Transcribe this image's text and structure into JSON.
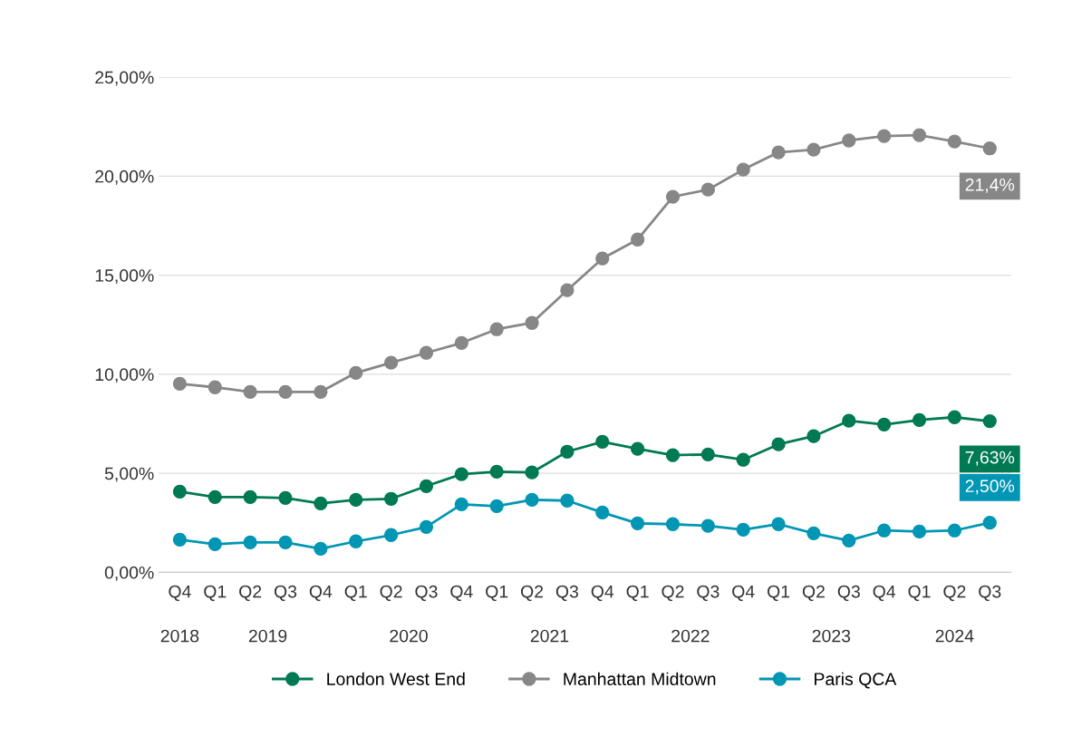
{
  "chart_data": {
    "type": "line",
    "categories": [
      "Q4",
      "Q1",
      "Q2",
      "Q3",
      "Q4",
      "Q1",
      "Q2",
      "Q3",
      "Q4",
      "Q1",
      "Q2",
      "Q3",
      "Q4",
      "Q1",
      "Q2",
      "Q3",
      "Q4",
      "Q1",
      "Q2",
      "Q3",
      "Q4",
      "Q1",
      "Q2",
      "Q3"
    ],
    "annotations": [
      "2018",
      "2019",
      "2020",
      "2021",
      "2022",
      "2023",
      "2024"
    ],
    "series": [
      {
        "name": "London West End",
        "color": "#007a53",
        "values": [
          4.07,
          3.8,
          3.8,
          3.75,
          3.48,
          3.66,
          3.71,
          4.35,
          4.95,
          5.08,
          5.04,
          6.09,
          6.59,
          6.23,
          5.91,
          5.95,
          5.68,
          6.46,
          6.87,
          7.65,
          7.46,
          7.69,
          7.83,
          7.63
        ],
        "value_labels": [
          null,
          null,
          null,
          null,
          null,
          null,
          null,
          null,
          null,
          null,
          null,
          null,
          null,
          null,
          null,
          null,
          null,
          null,
          null,
          null,
          null,
          null,
          null,
          "7,63%"
        ]
      },
      {
        "name": "Manhattan Midtown",
        "color": "#878787",
        "values": [
          9.52,
          9.34,
          9.11,
          9.11,
          9.11,
          10.07,
          10.58,
          11.08,
          11.58,
          12.27,
          12.59,
          14.24,
          15.84,
          16.8,
          18.96,
          19.32,
          20.33,
          21.2,
          21.34,
          21.8,
          22.02,
          22.07,
          21.75,
          21.4
        ],
        "value_labels": [
          null,
          null,
          null,
          null,
          null,
          null,
          null,
          null,
          null,
          null,
          null,
          null,
          null,
          null,
          null,
          null,
          null,
          null,
          null,
          null,
          null,
          null,
          null,
          "21,4%"
        ]
      },
      {
        "name": "Paris QCA",
        "color": "#0096b4",
        "values": [
          1.65,
          1.42,
          1.51,
          1.51,
          1.19,
          1.56,
          1.88,
          2.29,
          3.43,
          3.34,
          3.66,
          3.62,
          3.02,
          2.47,
          2.43,
          2.34,
          2.15,
          2.43,
          1.97,
          1.6,
          2.11,
          2.06,
          2.11,
          2.5
        ],
        "value_labels": [
          null,
          null,
          null,
          null,
          null,
          null,
          null,
          null,
          null,
          null,
          null,
          null,
          null,
          null,
          null,
          null,
          null,
          null,
          null,
          null,
          null,
          null,
          null,
          "2,50%"
        ]
      }
    ],
    "ylim": [
      0,
      25
    ],
    "yticks": [
      {
        "value": 0,
        "label": "0,00%"
      },
      {
        "value": 5,
        "label": "5,00%"
      },
      {
        "value": 10,
        "label": "10,00%"
      },
      {
        "value": 15,
        "label": "15,00%"
      },
      {
        "value": 20,
        "label": "20,00%"
      },
      {
        "value": 25,
        "label": "25,00%"
      }
    ],
    "grid": "y",
    "legend": "bottom",
    "marker": "circle",
    "line_style": "solid"
  }
}
